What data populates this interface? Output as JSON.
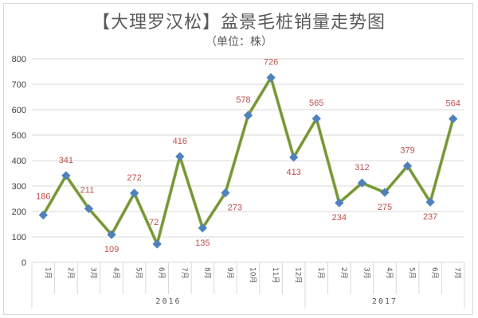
{
  "title": "【大理罗汉松】盆景毛桩销量走势图",
  "subtitle": "（单位：株）",
  "colors": {
    "line": "#76923c",
    "line_highlight": "#9bbb59",
    "marker": "#4f81bd",
    "label": "#c0504d",
    "grid": "#d9d9d9",
    "axis_text": "#404040"
  },
  "chart_data": {
    "type": "line",
    "title": "【大理罗汉松】盆景毛桩销量走势图",
    "subtitle": "（单位：株）",
    "xlabel": "",
    "ylabel": "",
    "ylim": [
      0,
      800
    ],
    "yticks": [
      0,
      100,
      200,
      300,
      400,
      500,
      600,
      700,
      800
    ],
    "grid": true,
    "legend": null,
    "groups": [
      {
        "label": "2016",
        "categories": [
          "1月",
          "2月",
          "3月",
          "4月",
          "5月",
          "6月",
          "7月",
          "8月",
          "9月",
          "10月",
          "11月",
          "12月"
        ]
      },
      {
        "label": "2017",
        "categories": [
          "1月",
          "2月",
          "3月",
          "4月",
          "5月",
          "6月",
          "7月"
        ]
      }
    ],
    "categories": [
      "2016-1月",
      "2016-2月",
      "2016-3月",
      "2016-4月",
      "2016-5月",
      "2016-6月",
      "2016-7月",
      "2016-8月",
      "2016-9月",
      "2016-10月",
      "2016-11月",
      "2016-12月",
      "2017-1月",
      "2017-2月",
      "2017-3月",
      "2017-4月",
      "2017-5月",
      "2017-6月",
      "2017-7月"
    ],
    "series": [
      {
        "name": "销量",
        "values": [
          186,
          341,
          211,
          109,
          272,
          72,
          416,
          135,
          273,
          578,
          726,
          413,
          565,
          234,
          312,
          275,
          379,
          237,
          564
        ]
      }
    ]
  }
}
